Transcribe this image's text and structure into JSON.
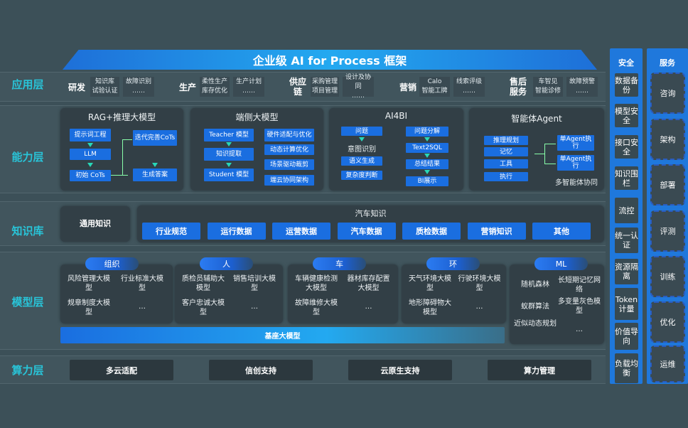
{
  "title": "企业级 AI for Process 框架",
  "layers": [
    "应用层",
    "能力层",
    "知识库",
    "模型层",
    "算力层"
  ],
  "application": [
    {
      "group": "研发",
      "items": [
        "知识库",
        "故障识别",
        "试验认证",
        "……"
      ]
    },
    {
      "group": "生产",
      "items": [
        "柔性生产",
        "生产计划",
        "库存优化",
        "……"
      ]
    },
    {
      "group": "供应链",
      "items": [
        "采购管理",
        "设计及协同",
        "项目管理",
        "……"
      ]
    },
    {
      "group": "营销",
      "items": [
        "Calo",
        "线索评级",
        "智能工牌",
        "……"
      ]
    },
    {
      "group": "售后服务",
      "items": [
        "车智见",
        "故障预警",
        "智能诊修",
        "……"
      ]
    }
  ],
  "capability": {
    "rag": {
      "title": "RAG+推理大模型",
      "boxes": [
        "提示词工程",
        "LLM",
        "初始 CoTs",
        "迭代完善CoTs",
        "生成答案"
      ]
    },
    "edge": {
      "title": "端侧大模型",
      "left": [
        "Teacher 模型",
        "知识提取",
        "Student 模型"
      ],
      "right": [
        "硬件适配与优化",
        "动态计算优化",
        "场景驱动裁剪",
        "端云协同架构"
      ]
    },
    "ai4bi": {
      "title": "AI4BI",
      "left": [
        "问题",
        "意图识别",
        "语义生成",
        "复杂度判断"
      ],
      "right": [
        "问题分解",
        "Text2SQL",
        "总结结果",
        "BI展示"
      ]
    },
    "agent": {
      "title": "智能体Agent",
      "left": [
        "推理规划",
        "记忆",
        "工具",
        "执行"
      ],
      "right": [
        "单Agent执行",
        "单Agent执行"
      ],
      "footer": "多智能体协同"
    }
  },
  "knowledge": {
    "general": "通用知识",
    "auto_title": "汽车知识",
    "items": [
      "行业规范",
      "运行数据",
      "运营数据",
      "汽车数据",
      "质检数据",
      "营销知识",
      "其他"
    ]
  },
  "models": [
    {
      "tag": "组织",
      "items": [
        "风险管理大模型",
        "行业标准大模型",
        "规章制度大模型",
        "…"
      ]
    },
    {
      "tag": "人",
      "items": [
        "质检员辅助大模型",
        "销售培训大模型",
        "客户忠诚大模型",
        "…"
      ]
    },
    {
      "tag": "车",
      "items": [
        "车辆健康检测大模型",
        "器材库存配置大模型",
        "故障维修大模型",
        "…"
      ]
    },
    {
      "tag": "环",
      "items": [
        "天气环境大模型",
        "行驶环境大模型",
        "地形障碍物大模型",
        "…"
      ]
    },
    {
      "tag": "ML",
      "items": [
        "随机森林",
        "长短期记忆网络",
        "蚁群算法",
        "多变量灰色模型",
        "近似动态规划",
        "…"
      ]
    }
  ],
  "base_model": "基座大模型",
  "compute": [
    "多云适配",
    "信创支持",
    "云原生支持",
    "算力管理"
  ],
  "security": {
    "title": "安全",
    "items": [
      "数据备份",
      "模型安全",
      "接口安全",
      "知识围栏",
      "流控",
      "统一认证",
      "资源隔离",
      "Token计量",
      "价值导向",
      "负载均衡"
    ]
  },
  "services": {
    "title": "服务",
    "items": [
      "咨询",
      "架构",
      "部署",
      "评测",
      "训练",
      "优化",
      "运维"
    ]
  },
  "colors": {
    "background": "#3c5058",
    "accent_blue": "#1a6ee0",
    "layer_label": "#29c4d8",
    "arrow": "#27d7b8"
  }
}
